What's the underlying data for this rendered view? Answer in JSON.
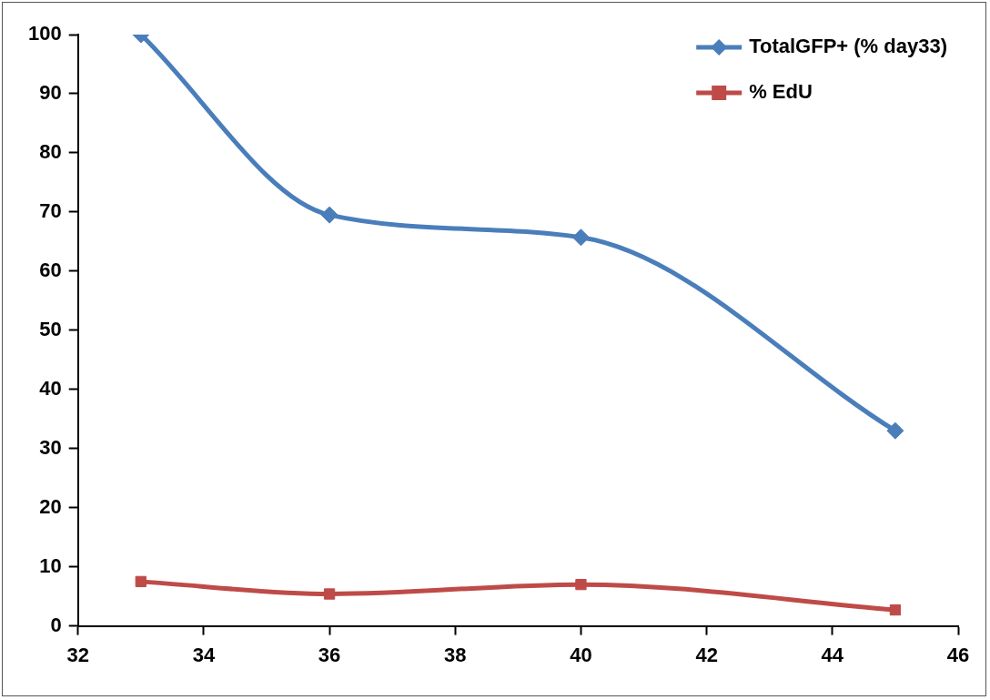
{
  "chart_data": {
    "type": "line",
    "x": [
      33,
      36,
      40,
      45
    ],
    "series": [
      {
        "name": "TotalGFP+ (% day33)",
        "color": "#4a7ebb",
        "values": [
          100,
          69.5,
          65.7,
          33
        ],
        "marker": "diamond"
      },
      {
        "name": "% EdU",
        "color": "#be4b48",
        "values": [
          7.5,
          5.4,
          7,
          2.7
        ],
        "marker": "square"
      }
    ],
    "xlim": [
      32,
      46
    ],
    "xticks": [
      32,
      34,
      36,
      38,
      40,
      42,
      44,
      46
    ],
    "ylim": [
      0,
      100
    ],
    "yticks": [
      0,
      10,
      20,
      30,
      40,
      50,
      60,
      70,
      80,
      90,
      100
    ],
    "grid": false,
    "legend": "top right",
    "line_style": "solid"
  }
}
